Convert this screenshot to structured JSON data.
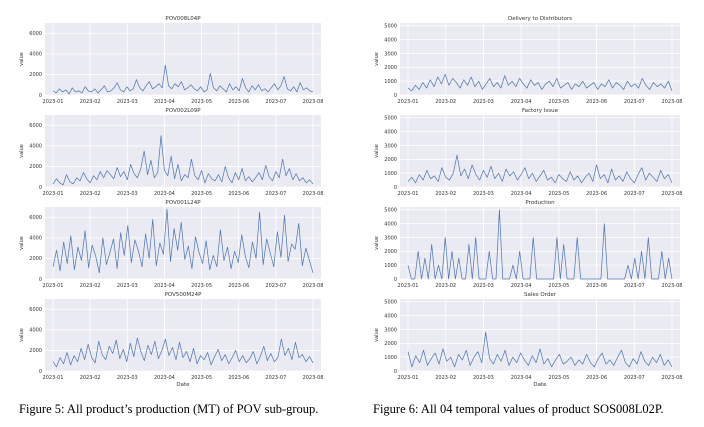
{
  "figures": {
    "left_caption": "Figure 5: All product’s production (MT) of POV sub-group.",
    "right_caption": "Figure 6: All 04 temporal values of product SOS008L02P."
  },
  "colors": {
    "line": "#4c72b0",
    "panel_bg": "#eaeaf2",
    "grid": "#ffffff",
    "text": "#333333"
  },
  "chart_data": [
    {
      "type": "line",
      "title": "POV008L04P",
      "xlabel": "",
      "ylabel": "value",
      "xlim": [
        "2023-01",
        "2023-08"
      ],
      "ylim": [
        0,
        7000
      ],
      "yticks": [
        0,
        2000,
        4000,
        6000
      ],
      "xticks": [
        "2023-01",
        "2023-02",
        "2023-03",
        "2023-04",
        "2023-05",
        "2023-06",
        "2023-07",
        "2023-08"
      ],
      "series": [
        {
          "values": [
            400,
            200,
            600,
            300,
            500,
            100,
            700,
            300,
            400,
            200,
            800,
            400,
            300,
            600,
            200,
            500,
            900,
            300,
            400,
            700,
            1200,
            500,
            300,
            800,
            400,
            600,
            1500,
            700,
            400,
            900,
            1300,
            600,
            800,
            1100,
            700,
            2900,
            900,
            600,
            1100,
            800,
            1300,
            500,
            700,
            1000,
            600,
            400,
            800,
            300,
            500,
            2100,
            700,
            400,
            900,
            600,
            300,
            1100,
            500,
            800,
            400,
            1600,
            700,
            300,
            900,
            500,
            1000,
            400,
            600,
            300,
            700,
            1100,
            500,
            900,
            1800,
            600,
            400,
            800,
            300,
            1200,
            500,
            700,
            400,
            300
          ]
        }
      ]
    },
    {
      "type": "line",
      "title": "POV002L09P",
      "xlabel": "",
      "ylabel": "value",
      "xlim": [
        "2023-01",
        "2023-08"
      ],
      "ylim": [
        0,
        7000
      ],
      "yticks": [
        0,
        2000,
        4000,
        6000
      ],
      "xticks": [
        "2023-01",
        "2023-02",
        "2023-03",
        "2023-04",
        "2023-05",
        "2023-06",
        "2023-07",
        "2023-08"
      ],
      "series": [
        {
          "values": [
            300,
            800,
            400,
            200,
            1200,
            500,
            300,
            900,
            600,
            1400,
            800,
            400,
            1100,
            700,
            1500,
            900,
            1600,
            1200,
            800,
            1900,
            1000,
            1500,
            700,
            2200,
            1300,
            900,
            1800,
            3500,
            1200,
            2600,
            900,
            1400,
            5000,
            1600,
            1100,
            3000,
            800,
            2200,
            600,
            1200,
            900,
            2700,
            1100,
            700,
            1600,
            400,
            1300,
            800,
            600,
            1200,
            500,
            2000,
            900,
            400,
            1400,
            700,
            1800,
            600,
            1000,
            500,
            900,
            1400,
            700,
            2100,
            1000,
            600,
            1500,
            900,
            2700,
            1100,
            1800,
            700,
            1300,
            600,
            900,
            400,
            700,
            300
          ]
        }
      ]
    },
    {
      "type": "line",
      "title": "POV001L24P",
      "xlabel": "",
      "ylabel": "value",
      "xlim": [
        "2023-01",
        "2023-08"
      ],
      "ylim": [
        0,
        7000
      ],
      "yticks": [
        0,
        2000,
        4000,
        6000
      ],
      "xticks": [
        "2023-01",
        "2023-02",
        "2023-03",
        "2023-04",
        "2023-05",
        "2023-06",
        "2023-07",
        "2023-08"
      ],
      "series": [
        {
          "values": [
            1200,
            2800,
            800,
            3600,
            1500,
            4200,
            900,
            3100,
            1800,
            4700,
            1100,
            3300,
            2200,
            600,
            4000,
            1400,
            2600,
            3900,
            1000,
            4500,
            2300,
            5200,
            1600,
            3800,
            2700,
            1200,
            4400,
            2000,
            5800,
            1300,
            3500,
            2400,
            6800,
            1700,
            4900,
            2800,
            5500,
            1900,
            3200,
            1000,
            4100,
            2600,
            1500,
            3700,
            900,
            2300,
            1200,
            4800,
            1800,
            3100,
            1000,
            2700,
            1600,
            4300,
            2200,
            1100,
            3600,
            2000,
            6500,
            1400,
            3900,
            2500,
            1200,
            4600,
            2100,
            6200,
            1700,
            3400,
            2900,
            5400,
            1300,
            3000,
            1800,
            600
          ]
        }
      ]
    },
    {
      "type": "line",
      "title": "POV500M24P",
      "xlabel": "Date",
      "ylabel": "value",
      "xlim": [
        "2023-01",
        "2023-08"
      ],
      "ylim": [
        0,
        7000
      ],
      "yticks": [
        0,
        2000,
        4000,
        6000
      ],
      "xticks": [
        "2023-01",
        "2023-02",
        "2023-03",
        "2023-04",
        "2023-05",
        "2023-06",
        "2023-07",
        "2023-08"
      ],
      "series": [
        {
          "values": [
            900,
            400,
            1300,
            700,
            1800,
            600,
            1500,
            900,
            2200,
            1100,
            2600,
            1300,
            800,
            2900,
            1600,
            1100,
            2400,
            1700,
            3000,
            1200,
            2100,
            900,
            2700,
            1400,
            3200,
            1900,
            1000,
            2500,
            1600,
            2900,
            1200,
            2000,
            3100,
            1500,
            2300,
            1100,
            2800,
            1300,
            1900,
            900,
            2200,
            700,
            1500,
            1100,
            1800,
            600,
            1400,
            2100,
            1000,
            1600,
            700,
            1300,
            2000,
            900,
            1500,
            800,
            1200,
            1900,
            700,
            1400,
            2400,
            1000,
            1700,
            900,
            1300,
            3100,
            1500,
            2200,
            1100,
            2800,
            1300,
            1600,
            900,
            1400,
            800
          ]
        }
      ]
    },
    {
      "type": "line",
      "title": "Delivery to Distributors",
      "xlabel": "",
      "ylabel": "value",
      "xlim": [
        "2023-01",
        "2023-08"
      ],
      "ylim": [
        0,
        5200
      ],
      "yticks": [
        0,
        1000,
        2000,
        3000,
        4000,
        5000
      ],
      "xticks": [
        "2023-01",
        "2023-02",
        "2023-03",
        "2023-04",
        "2023-05",
        "2023-06",
        "2023-07",
        "2023-08"
      ],
      "series": [
        {
          "values": [
            500,
            300,
            700,
            400,
            900,
            500,
            1100,
            600,
            1300,
            800,
            1500,
            700,
            1200,
            900,
            500,
            1100,
            700,
            1300,
            600,
            1000,
            400,
            800,
            1200,
            600,
            900,
            500,
            1400,
            700,
            1000,
            600,
            1200,
            800,
            500,
            1100,
            700,
            900,
            400,
            800,
            1000,
            600,
            1200,
            500,
            700,
            900,
            400,
            800,
            600,
            1000,
            500,
            700,
            900,
            400,
            800,
            600,
            1100,
            500,
            900,
            700,
            400,
            1000,
            600,
            800,
            500,
            1200,
            700,
            400,
            900,
            600,
            800,
            500,
            1000,
            300
          ]
        }
      ]
    },
    {
      "type": "line",
      "title": "Factory Issue",
      "xlabel": "",
      "ylabel": "value",
      "xlim": [
        "2023-01",
        "2023-08"
      ],
      "ylim": [
        0,
        5200
      ],
      "yticks": [
        0,
        1000,
        2000,
        3000,
        4000,
        5000
      ],
      "xticks": [
        "2023-01",
        "2023-02",
        "2023-03",
        "2023-04",
        "2023-05",
        "2023-06",
        "2023-07",
        "2023-08"
      ],
      "series": [
        {
          "values": [
            400,
            700,
            300,
            900,
            500,
            1200,
            600,
            800,
            400,
            1400,
            700,
            500,
            1000,
            2300,
            800,
            1300,
            600,
            1600,
            900,
            500,
            1200,
            700,
            1500,
            600,
            1000,
            400,
            1300,
            800,
            1100,
            500,
            900,
            1400,
            600,
            1000,
            400,
            800,
            1200,
            500,
            700,
            300,
            900,
            600,
            400,
            1100,
            500,
            800,
            300,
            700,
            1000,
            400,
            1600,
            600,
            900,
            300,
            1300,
            500,
            800,
            400,
            1100,
            600,
            300,
            900,
            1400,
            500,
            1000,
            700,
            400,
            1200,
            600,
            900,
            300
          ]
        }
      ]
    },
    {
      "type": "line",
      "title": "Production",
      "xlabel": "",
      "ylabel": "value",
      "xlim": [
        "2023-01",
        "2023-08"
      ],
      "ylim": [
        0,
        5200
      ],
      "yticks": [
        0,
        1000,
        2000,
        3000,
        4000,
        5000
      ],
      "xticks": [
        "2023-01",
        "2023-02",
        "2023-03",
        "2023-04",
        "2023-05",
        "2023-06",
        "2023-07",
        "2023-08"
      ],
      "series": [
        {
          "values": [
            1000,
            0,
            0,
            2000,
            0,
            1500,
            0,
            2500,
            0,
            1000,
            0,
            3000,
            0,
            2000,
            0,
            1500,
            0,
            0,
            2500,
            0,
            3000,
            0,
            0,
            0,
            2000,
            0,
            0,
            5000,
            0,
            0,
            0,
            1000,
            0,
            2000,
            0,
            0,
            0,
            3000,
            0,
            0,
            0,
            0,
            0,
            0,
            3000,
            0,
            2500,
            0,
            0,
            0,
            3000,
            0,
            0,
            0,
            0,
            0,
            0,
            0,
            4000,
            0,
            0,
            0,
            0,
            0,
            0,
            1000,
            0,
            1500,
            0,
            2000,
            0,
            3000,
            0,
            0,
            0,
            2000,
            0,
            1500,
            0
          ]
        }
      ]
    },
    {
      "type": "line",
      "title": "Sales Order",
      "xlabel": "Date",
      "ylabel": "value",
      "xlim": [
        "2023-01",
        "2023-08"
      ],
      "ylim": [
        0,
        5200
      ],
      "yticks": [
        0,
        1000,
        2000,
        3000,
        4000,
        5000
      ],
      "xticks": [
        "2023-01",
        "2023-02",
        "2023-03",
        "2023-04",
        "2023-05",
        "2023-06",
        "2023-07",
        "2023-08"
      ],
      "series": [
        {
          "values": [
            1400,
            300,
            1100,
            600,
            1500,
            400,
            900,
            1300,
            500,
            1600,
            700,
            1000,
            300,
            1200,
            800,
            1500,
            400,
            1000,
            1400,
            600,
            2800,
            900,
            500,
            1200,
            700,
            1500,
            400,
            1000,
            600,
            1300,
            800,
            400,
            1100,
            600,
            1600,
            500,
            900,
            300,
            800,
            1200,
            500,
            700,
            1000,
            400,
            800,
            500,
            1200,
            600,
            300,
            900,
            1300,
            500,
            800,
            400,
            1000,
            1500,
            600,
            300,
            900,
            500,
            1400,
            700,
            400,
            1000,
            600,
            1200,
            400,
            800,
            300
          ]
        }
      ]
    }
  ]
}
